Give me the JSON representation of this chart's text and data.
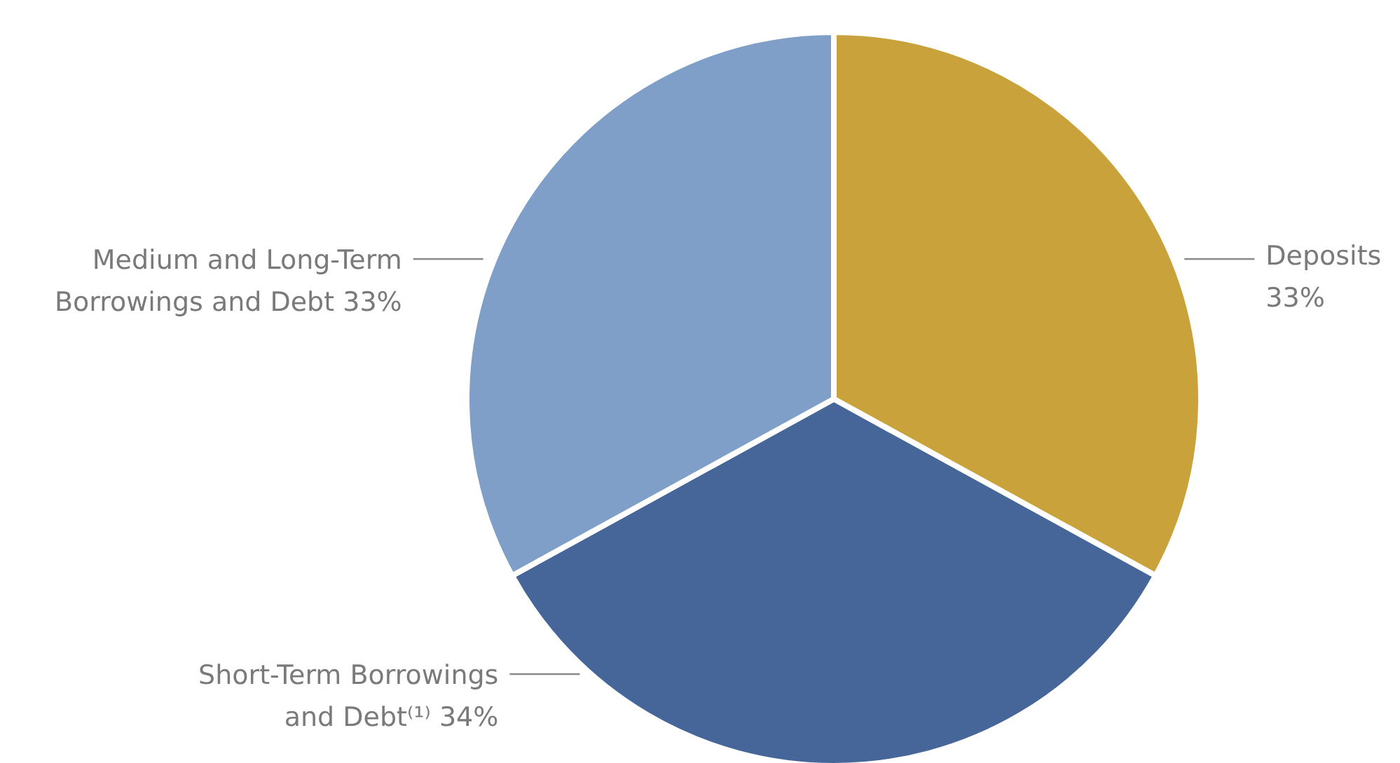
{
  "chart_data": {
    "type": "pie",
    "categories": [
      "Deposits",
      "Short-Term Borrowings\nand Debt⁽¹⁾",
      "Medium and Long-Term\nBorrowings and Debt"
    ],
    "values": [
      33,
      34,
      33
    ],
    "value_labels": [
      "33%",
      "34%",
      "33%"
    ],
    "colors": [
      "#c9a23c",
      "#46669a",
      "#7f9fc8"
    ]
  }
}
